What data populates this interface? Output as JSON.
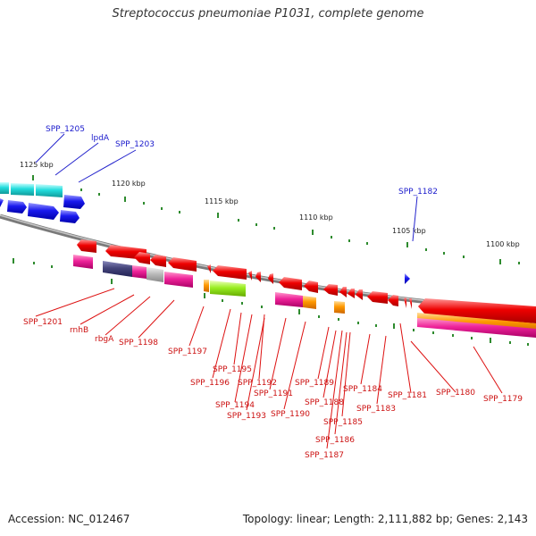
{
  "title": "Streptococcus pneumoniae P1031, complete genome",
  "footer": {
    "accession": "Accession: NC_012467",
    "topology": "Topology: linear; Length: 2,111,882 bp; Genes: 2,143"
  },
  "scale_labels": [
    "1125 kbp",
    "1120 kbp",
    "1115 kbp",
    "1110 kbp",
    "1105 kbp",
    "1100 kbp"
  ],
  "blue_labels": [
    "SPP_1205",
    "lpdA",
    "SPP_1203",
    "SPP_1182"
  ],
  "red_labels": [
    "SPP_1201",
    "rnhB",
    "rbgA",
    "SPP_1198",
    "SPP_1197",
    "SPP_1195",
    "SPP_1196",
    "SPP_1192",
    "SPP_1191",
    "SPP_1194",
    "SPP_1193",
    "SPP_1190",
    "SPP_1189",
    "SPP_1188",
    "SPP_1185",
    "SPP_1186",
    "SPP_1187",
    "SPP_1184",
    "SPP_1183",
    "SPP_1181",
    "SPP_1180",
    "SPP_1179"
  ],
  "colors": {
    "red": "#ee0000",
    "blue": "#1a1aee",
    "cyan": "#22dddd",
    "magenta": "#ee2299",
    "orange": "#ff9900",
    "lime": "#99ee22",
    "slate": "#44447a",
    "gray": "#bbbbbb",
    "green": "#2e8b2e"
  }
}
